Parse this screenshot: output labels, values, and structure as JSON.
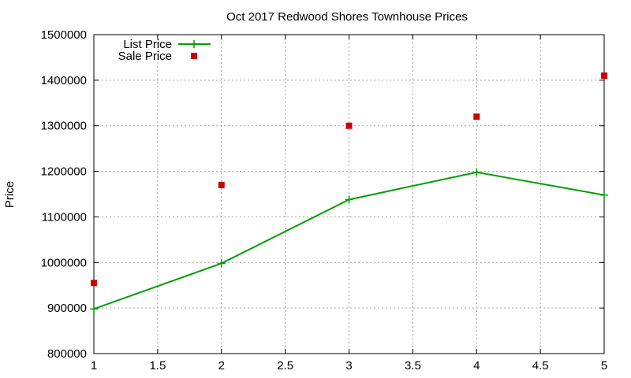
{
  "chart_data": {
    "type": "line",
    "title": "Oct 2017 Redwood Shores Townhouse Prices",
    "xlabel": "",
    "ylabel": "Price",
    "xlim": [
      1,
      5
    ],
    "ylim": [
      800000,
      1500000
    ],
    "x_ticks": [
      "1",
      "1.5",
      "2",
      "2.5",
      "3",
      "3.5",
      "4",
      "4.5",
      "5"
    ],
    "y_ticks": [
      "800000",
      "900000",
      "1000000",
      "1100000",
      "1200000",
      "1300000",
      "1400000",
      "1500000"
    ],
    "grid": true,
    "legend_position": "top-left",
    "series": [
      {
        "name": "List Price",
        "style": "line-with-plus-markers",
        "color": "#009e00",
        "x": [
          1,
          2,
          3,
          4,
          5
        ],
        "y": [
          898000,
          998000,
          1138000,
          1198000,
          1148000
        ]
      },
      {
        "name": "Sale Price",
        "style": "square-markers",
        "color": "#cc0000",
        "x": [
          1,
          2,
          3,
          4,
          5
        ],
        "y": [
          955000,
          1170000,
          1300000,
          1320000,
          1410000
        ]
      }
    ]
  }
}
